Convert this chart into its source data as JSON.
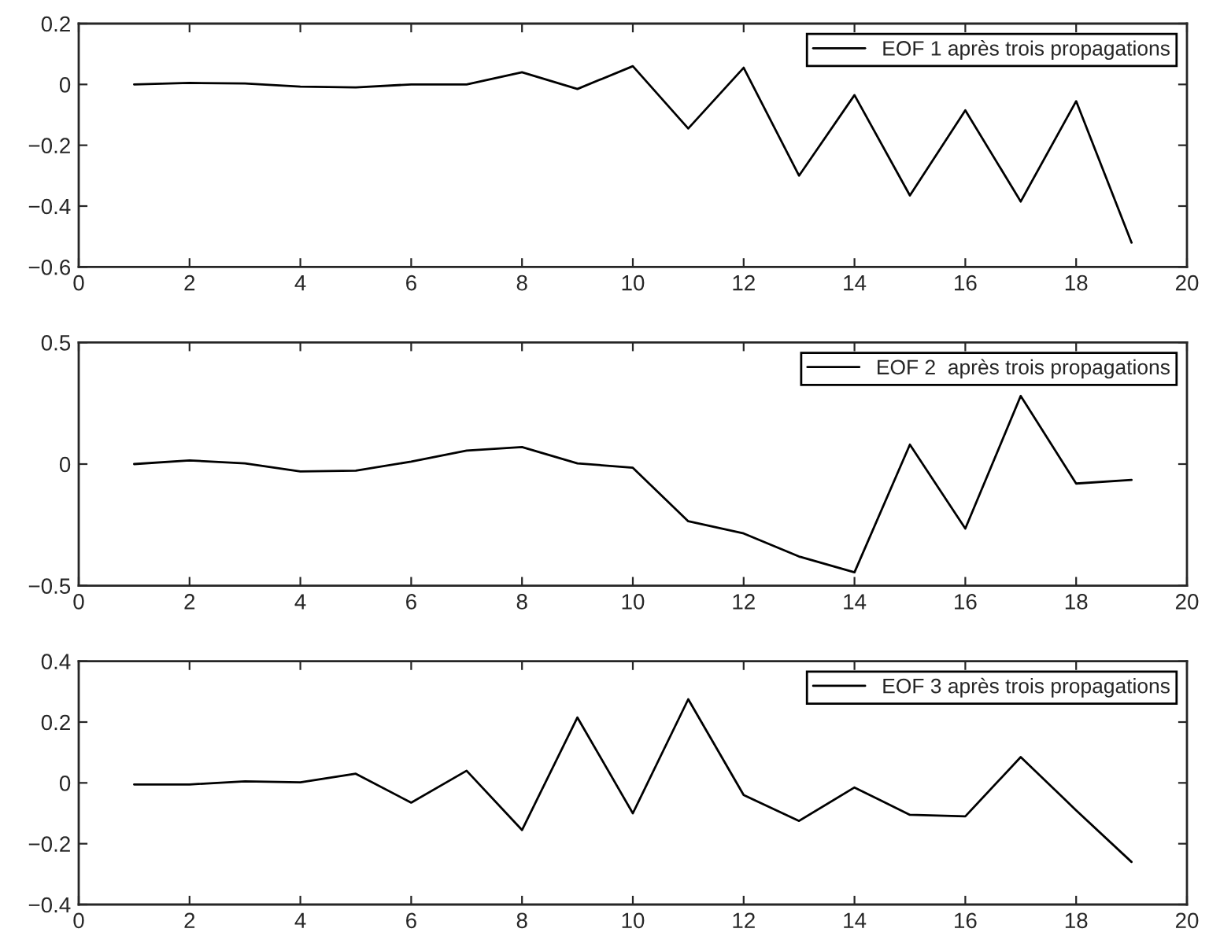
{
  "chart_data": [
    {
      "type": "line",
      "x": [
        1,
        2,
        3,
        4,
        5,
        6,
        7,
        8,
        9,
        10,
        11,
        12,
        13,
        14,
        15,
        16,
        17,
        18,
        19
      ],
      "series": [
        {
          "name": "EOF 1 après trois propagations",
          "color": "#000000",
          "values": [
            0,
            0.005,
            0.003,
            -0.007,
            -0.01,
            0,
            0,
            0.04,
            -0.015,
            0.06,
            -0.145,
            0.055,
            -0.3,
            -0.035,
            -0.365,
            -0.085,
            -0.385,
            -0.055,
            -0.52
          ]
        }
      ],
      "xlim": [
        0,
        20
      ],
      "xticks": [
        0,
        2,
        4,
        6,
        8,
        10,
        12,
        14,
        16,
        18,
        20
      ],
      "ylim": [
        -0.6,
        0.2
      ],
      "yticks": [
        {
          "value": -0.6,
          "label": "−0.6"
        },
        {
          "value": -0.4,
          "label": "−0.4"
        },
        {
          "value": -0.2,
          "label": "−0.2"
        },
        0,
        0.2
      ],
      "grid": false,
      "legend": "top right"
    },
    {
      "type": "line",
      "x": [
        1,
        2,
        3,
        4,
        5,
        6,
        7,
        8,
        9,
        10,
        11,
        12,
        13,
        14,
        15,
        16,
        17,
        18,
        19
      ],
      "series": [
        {
          "name": "EOF 2  après trois propagations",
          "color": "#000000",
          "values": [
            0,
            0.015,
            0.003,
            -0.03,
            -0.027,
            0.01,
            0.055,
            0.07,
            0.003,
            -0.015,
            -0.235,
            -0.285,
            -0.38,
            -0.445,
            0.08,
            -0.265,
            0.28,
            -0.08,
            -0.065
          ]
        }
      ],
      "xlim": [
        0,
        20
      ],
      "xticks": [
        0,
        2,
        4,
        6,
        8,
        10,
        12,
        14,
        16,
        18,
        20
      ],
      "ylim": [
        -0.5,
        0.5
      ],
      "yticks": [
        {
          "value": -0.5,
          "label": "−0.5"
        },
        0,
        0.5
      ],
      "grid": false,
      "legend": "top right"
    },
    {
      "type": "line",
      "x": [
        1,
        2,
        3,
        4,
        5,
        6,
        7,
        8,
        9,
        10,
        11,
        12,
        13,
        14,
        15,
        16,
        17,
        18,
        19
      ],
      "series": [
        {
          "name": "EOF 3 après trois propagations",
          "color": "#000000",
          "values": [
            -0.005,
            -0.005,
            0.005,
            0.002,
            0.03,
            -0.065,
            0.04,
            -0.155,
            0.215,
            -0.1,
            0.275,
            -0.04,
            -0.125,
            -0.015,
            -0.105,
            -0.11,
            0.085,
            -0.09,
            -0.26
          ]
        }
      ],
      "xlim": [
        0,
        20
      ],
      "xticks": [
        0,
        2,
        4,
        6,
        8,
        10,
        12,
        14,
        16,
        18,
        20
      ],
      "ylim": [
        -0.4,
        0.4
      ],
      "yticks": [
        {
          "value": -0.4,
          "label": "−0.4"
        },
        {
          "value": -0.2,
          "label": "−0.2"
        },
        0,
        0.2,
        0.4
      ],
      "grid": false,
      "legend": "top right"
    }
  ]
}
